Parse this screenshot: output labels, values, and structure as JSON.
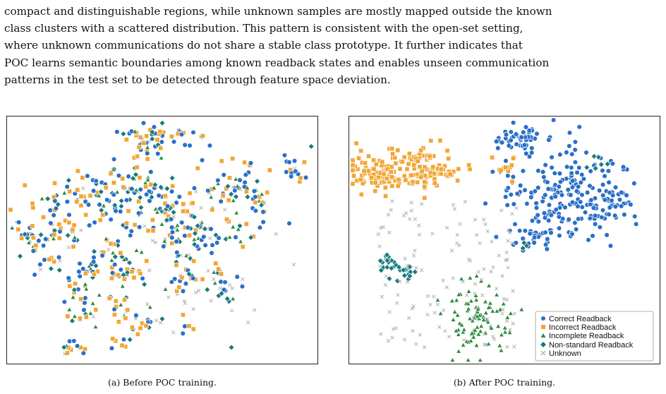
{
  "body": {
    "paragraph_lines": [
      "compact and distinguishable regions, while unknown samples are mostly mapped outside the known",
      "class clusters with a scattered distribution. This pattern is consistent with the open-set setting,",
      "where unknown communications do not share a stable class prototype. It further indicates that",
      "POC learns semantic boundaries among known readback states and enables unseen communication",
      "patterns in the test set to be detected through feature space deviation."
    ]
  },
  "figure": {
    "caption_a": "(a) Before POC training.",
    "caption_b": "(b) After POC training."
  },
  "legend": [
    {
      "label": "Correct Readback",
      "color": "#2a6fc9",
      "marker": "circle"
    },
    {
      "label": "Incorrect Readback",
      "color": "#f2a634",
      "marker": "square"
    },
    {
      "label": "Incomplete Readback",
      "color": "#2e8b3e",
      "marker": "triangle"
    },
    {
      "label": "Non-standard Readback",
      "color": "#177a7e",
      "marker": "diamond"
    },
    {
      "label": "Unknown",
      "color": "#b0b0b0",
      "marker": "cross"
    }
  ],
  "chart_data": [
    {
      "type": "scatter",
      "title": "",
      "xlabel": "",
      "ylabel": "",
      "grid": false,
      "legend": "none",
      "series_description": "t-SNE embedding before POC training: all classes intermixed across many small clusters",
      "series": [
        {
          "name": "Correct Readback",
          "marker": "circle",
          "color": "#2a6fc9"
        },
        {
          "name": "Incorrect Readback",
          "marker": "square",
          "color": "#f2a634"
        },
        {
          "name": "Incomplete Readback",
          "marker": "triangle",
          "color": "#2e8b3e"
        },
        {
          "name": "Non-standard Readback",
          "marker": "diamond",
          "color": "#177a7e"
        },
        {
          "name": "Unknown",
          "marker": "cross",
          "color": "#b0b0b0"
        }
      ]
    },
    {
      "type": "scatter",
      "title": "",
      "xlabel": "",
      "ylabel": "",
      "grid": false,
      "legend": "bottom-right",
      "series_description": "t-SNE embedding after POC training: known classes form compact clusters, unknown samples scattered between them",
      "series": [
        {
          "name": "Correct Readback",
          "marker": "circle",
          "color": "#2a6fc9"
        },
        {
          "name": "Incorrect Readback",
          "marker": "square",
          "color": "#f2a634"
        },
        {
          "name": "Incomplete Readback",
          "marker": "triangle",
          "color": "#2e8b3e"
        },
        {
          "name": "Non-standard Readback",
          "marker": "diamond",
          "color": "#177a7e"
        },
        {
          "name": "Unknown",
          "marker": "cross",
          "color": "#b0b0b0"
        }
      ]
    }
  ]
}
